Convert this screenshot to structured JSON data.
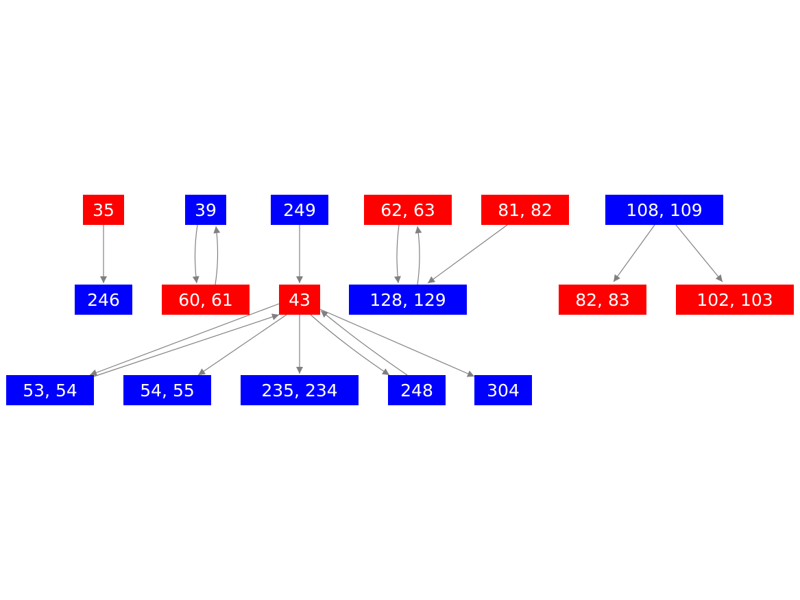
{
  "colors": {
    "red": "#ff0000",
    "blue": "#0000ff",
    "edge": "#808080",
    "label": "#ffffff"
  },
  "nodes": [
    {
      "id": "n35",
      "label": "35",
      "color": "red"
    },
    {
      "id": "n39",
      "label": "39",
      "color": "blue"
    },
    {
      "id": "n249",
      "label": "249",
      "color": "blue"
    },
    {
      "id": "n6263",
      "label": "62, 63",
      "color": "red"
    },
    {
      "id": "n8182",
      "label": "81, 82",
      "color": "red"
    },
    {
      "id": "n108109",
      "label": "108, 109",
      "color": "blue"
    },
    {
      "id": "n246",
      "label": "246",
      "color": "blue"
    },
    {
      "id": "n6061",
      "label": "60, 61",
      "color": "red"
    },
    {
      "id": "n43",
      "label": "43",
      "color": "red"
    },
    {
      "id": "n128129",
      "label": "128, 129",
      "color": "blue"
    },
    {
      "id": "n8283",
      "label": "82, 83",
      "color": "red"
    },
    {
      "id": "n102103",
      "label": "102, 103",
      "color": "red"
    },
    {
      "id": "n5354",
      "label": "53, 54",
      "color": "blue"
    },
    {
      "id": "n5455",
      "label": "54, 55",
      "color": "blue"
    },
    {
      "id": "n235234",
      "label": "235, 234",
      "color": "blue"
    },
    {
      "id": "n248",
      "label": "248",
      "color": "blue"
    },
    {
      "id": "n304",
      "label": "304",
      "color": "blue"
    }
  ],
  "edges": [
    {
      "from": "n35",
      "to": "n246"
    },
    {
      "from": "n39",
      "to": "n6061"
    },
    {
      "from": "n6061",
      "to": "n39"
    },
    {
      "from": "n249",
      "to": "n43"
    },
    {
      "from": "n6263",
      "to": "n128129"
    },
    {
      "from": "n128129",
      "to": "n6263"
    },
    {
      "from": "n8182",
      "to": "n128129"
    },
    {
      "from": "n108109",
      "to": "n8283"
    },
    {
      "from": "n108109",
      "to": "n102103"
    },
    {
      "from": "n43",
      "to": "n5354"
    },
    {
      "from": "n5354",
      "to": "n43"
    },
    {
      "from": "n43",
      "to": "n5455"
    },
    {
      "from": "n43",
      "to": "n235234"
    },
    {
      "from": "n43",
      "to": "n248"
    },
    {
      "from": "n248",
      "to": "n43"
    },
    {
      "from": "n43",
      "to": "n304"
    }
  ]
}
